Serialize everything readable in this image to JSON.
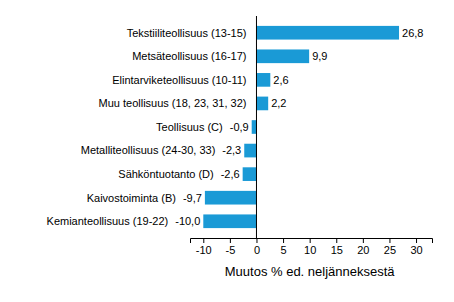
{
  "chart_data": {
    "type": "bar",
    "orientation": "horizontal",
    "x_label": "Muutos % ed. neljänneksestä",
    "categories": [
      "Tekstiiliteollisuus (13-15)",
      "Metsäteollisuus (16-17)",
      "Elintarviketeollisuus (10-11)",
      "Muu teollisuus (18, 23, 31, 32)",
      "Teollisuus (C)",
      "Metalliteollisuus (24-30, 33)",
      "Sähköntuotanto (D)",
      "Kaivostoiminta (B)",
      "Kemianteollisuus (19-22)"
    ],
    "values": [
      26.8,
      9.9,
      2.6,
      2.2,
      -0.9,
      -2.3,
      -2.6,
      -9.7,
      -10.0
    ],
    "value_labels": [
      "26,8",
      "9,9",
      "2,6",
      "2,2",
      "-0,9",
      "-2,3",
      "-2,6",
      "-9,7",
      "-10,0"
    ],
    "color": "#1a9ad6",
    "xlim": [
      -12.5,
      33
    ],
    "xticks": [
      -10,
      -5,
      0,
      5,
      10,
      15,
      20,
      25,
      30
    ],
    "data_labels": true,
    "grid": false
  }
}
